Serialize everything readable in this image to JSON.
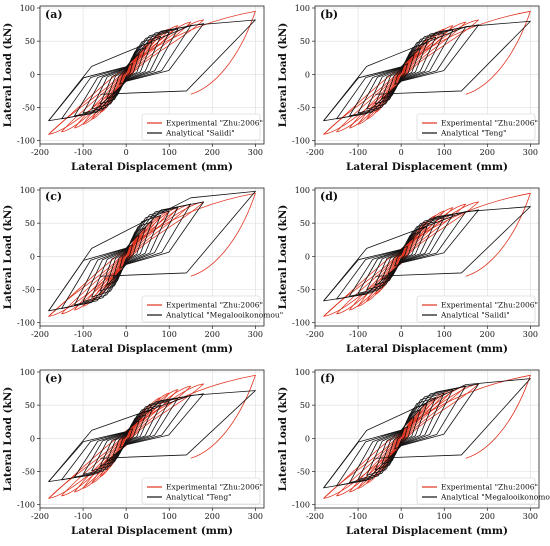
{
  "figure": {
    "panels": [
      "a",
      "b",
      "c",
      "d",
      "e",
      "f"
    ]
  },
  "chart_data": [
    {
      "panel": "(a)",
      "type": "line",
      "xlabel": "Lateral Displacement (mm)",
      "ylabel": "Lateral Load (kN)",
      "xlim": [
        -200,
        320
      ],
      "ylim": [
        -105,
        103
      ],
      "xticks": [
        -200,
        -100,
        0,
        100,
        200,
        300
      ],
      "yticks": [
        -100,
        -50,
        0,
        50,
        100
      ],
      "grid": true,
      "legend_position": "bottom-right",
      "cycle_peaks_mm": [
        -180,
        -150,
        -120,
        -100,
        -80,
        -60,
        -45,
        -30,
        -15,
        15,
        30,
        45,
        60,
        80,
        100,
        120,
        150,
        180,
        300
      ],
      "series": [
        {
          "name": "Experimental \"Zhu:2006\"",
          "color": "#e0321e",
          "peak_load_pos": 88,
          "peak_load_neg": -97,
          "final_peak": [
            300,
            95
          ]
        },
        {
          "name": "Analytical \"Saiidi\"",
          "color": "#111111",
          "peak_load_pos": 82,
          "peak_load_neg": -75,
          "final_peak": [
            300,
            82
          ]
        }
      ]
    },
    {
      "panel": "(b)",
      "type": "line",
      "xlabel": "Lateral Displacement (mm)",
      "ylabel": "Lateral Load (kN)",
      "xlim": [
        -200,
        320
      ],
      "ylim": [
        -105,
        103
      ],
      "xticks": [
        -200,
        -100,
        0,
        100,
        200,
        300
      ],
      "yticks": [
        -100,
        -50,
        0,
        50,
        100
      ],
      "grid": true,
      "legend_position": "bottom-right",
      "series": [
        {
          "name": "Experimental \"Zhu:2006\"",
          "color": "#e0321e",
          "peak_load_pos": 88,
          "peak_load_neg": -97,
          "final_peak": [
            300,
            95
          ]
        },
        {
          "name": "Analytical \"Teng\"",
          "color": "#111111",
          "peak_load_pos": 80,
          "peak_load_neg": -75,
          "final_peak": [
            300,
            80
          ]
        }
      ]
    },
    {
      "panel": "(c)",
      "type": "line",
      "xlabel": "Lateral Displacement (mm)",
      "ylabel": "Lateral Load (kN)",
      "xlim": [
        -200,
        320
      ],
      "ylim": [
        -105,
        103
      ],
      "xticks": [
        -200,
        -100,
        0,
        100,
        200,
        300
      ],
      "yticks": [
        -100,
        -50,
        0,
        50,
        100
      ],
      "grid": true,
      "legend_position": "bottom-right",
      "series": [
        {
          "name": "Experimental \"Zhu:2006\"",
          "color": "#e0321e",
          "peak_load_pos": 88,
          "peak_load_neg": -97,
          "final_peak": [
            300,
            95
          ]
        },
        {
          "name": "Analytical \"Megalooikonomou\"",
          "color": "#111111",
          "peak_load_pos": 88,
          "peak_load_neg": -88,
          "final_peak": [
            300,
            98
          ]
        }
      ]
    },
    {
      "panel": "(d)",
      "type": "line",
      "xlabel": "Lateral Displacement (mm)",
      "ylabel": "Lateral Load (kN)",
      "xlim": [
        -200,
        320
      ],
      "ylim": [
        -105,
        103
      ],
      "xticks": [
        -200,
        -100,
        0,
        100,
        200,
        300
      ],
      "yticks": [
        -100,
        -50,
        0,
        50,
        100
      ],
      "grid": true,
      "legend_position": "bottom-right",
      "series": [
        {
          "name": "Experimental \"Zhu:2006\"",
          "color": "#e0321e",
          "peak_load_pos": 88,
          "peak_load_neg": -97,
          "final_peak": [
            300,
            95
          ]
        },
        {
          "name": "Analytical \"Saiidi\"",
          "color": "#111111",
          "peak_load_pos": 75,
          "peak_load_neg": -72,
          "final_peak": [
            300,
            75
          ]
        }
      ]
    },
    {
      "panel": "(e)",
      "type": "line",
      "xlabel": "Lateral Displacement (mm)",
      "ylabel": "Lateral Load (kN)",
      "xlim": [
        -200,
        320
      ],
      "ylim": [
        -105,
        103
      ],
      "xticks": [
        -200,
        -100,
        0,
        100,
        200,
        300
      ],
      "yticks": [
        -100,
        -50,
        0,
        50,
        100
      ],
      "grid": true,
      "legend_position": "bottom-right",
      "series": [
        {
          "name": "Experimental \"Zhu:2006\"",
          "color": "#e0321e",
          "peak_load_pos": 88,
          "peak_load_neg": -97,
          "final_peak": [
            300,
            95
          ]
        },
        {
          "name": "Analytical \"Teng\"",
          "color": "#111111",
          "peak_load_pos": 72,
          "peak_load_neg": -70,
          "final_peak": [
            300,
            72
          ]
        }
      ]
    },
    {
      "panel": "(f)",
      "type": "line",
      "xlabel": "Lateral Displacement (mm)",
      "ylabel": "Lateral Load (kN)",
      "xlim": [
        -200,
        320
      ],
      "ylim": [
        -105,
        103
      ],
      "xticks": [
        -200,
        -100,
        0,
        100,
        200,
        300
      ],
      "yticks": [
        -100,
        -50,
        0,
        50,
        100
      ],
      "grid": true,
      "legend_position": "bottom-right",
      "series": [
        {
          "name": "Experimental \"Zhu:2006\"",
          "color": "#e0321e",
          "peak_load_pos": 88,
          "peak_load_neg": -97,
          "final_peak": [
            300,
            95
          ]
        },
        {
          "name": "Analytical \"Megalooikonomou\"",
          "color": "#111111",
          "peak_load_pos": 88,
          "peak_load_neg": -80,
          "final_peak": [
            300,
            90
          ]
        }
      ]
    }
  ]
}
